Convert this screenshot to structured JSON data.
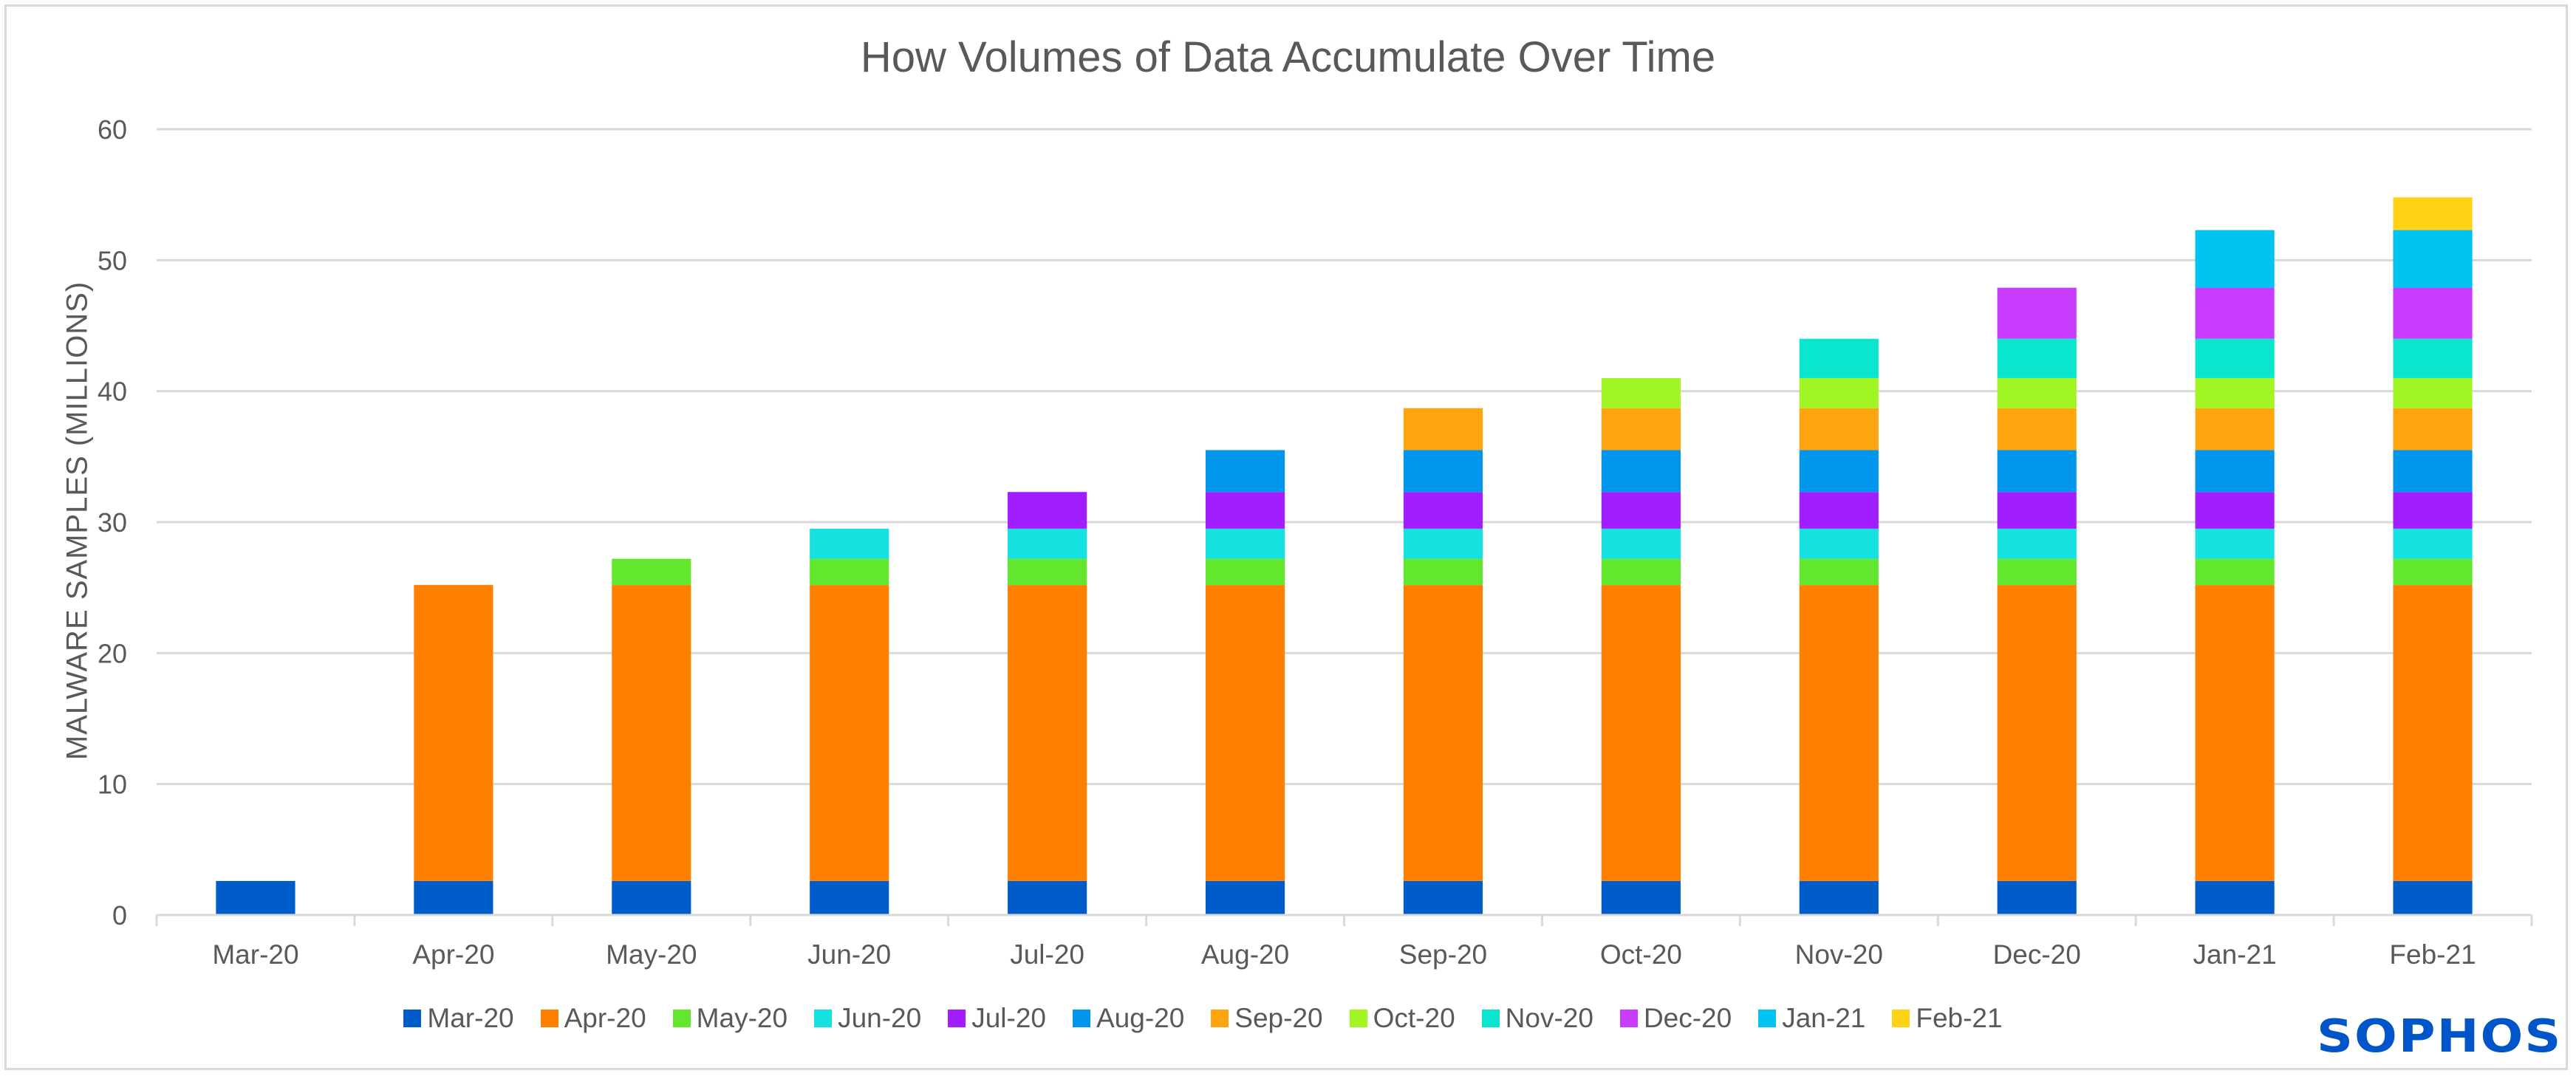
{
  "brand": {
    "logo_text": "SOPHOS",
    "logo_color": "#0055C8"
  },
  "chart_data": {
    "type": "bar",
    "stacked": true,
    "title": "How Volumes of Data Accumulate Over Time",
    "xlabel": "",
    "ylabel": "MALWARE SAMPLES (MILLIONS)",
    "ylim": [
      0,
      60
    ],
    "yticks": [
      0,
      10,
      20,
      30,
      40,
      50,
      60
    ],
    "grid": true,
    "legend_position": "bottom",
    "categories": [
      "Mar-20",
      "Apr-20",
      "May-20",
      "Jun-20",
      "Jul-20",
      "Aug-20",
      "Sep-20",
      "Oct-20",
      "Nov-20",
      "Dec-20",
      "Jan-21",
      "Feb-21"
    ],
    "series": [
      {
        "name": "Mar-20",
        "color": "#005CC8",
        "values": [
          2.6,
          2.6,
          2.6,
          2.6,
          2.6,
          2.6,
          2.6,
          2.6,
          2.6,
          2.6,
          2.6,
          2.6
        ]
      },
      {
        "name": "Apr-20",
        "color": "#FF8000",
        "values": [
          0,
          22.6,
          22.6,
          22.6,
          22.6,
          22.6,
          22.6,
          22.6,
          22.6,
          22.6,
          22.6,
          22.6
        ]
      },
      {
        "name": "May-20",
        "color": "#62E62E",
        "values": [
          0,
          0,
          2.0,
          2.0,
          2.0,
          2.0,
          2.0,
          2.0,
          2.0,
          2.0,
          2.0,
          2.0
        ]
      },
      {
        "name": "Jun-20",
        "color": "#16E0E0",
        "values": [
          0,
          0,
          0,
          2.3,
          2.3,
          2.3,
          2.3,
          2.3,
          2.3,
          2.3,
          2.3,
          2.3
        ]
      },
      {
        "name": "Jul-20",
        "color": "#A01EFF",
        "values": [
          0,
          0,
          0,
          0,
          2.8,
          2.8,
          2.8,
          2.8,
          2.8,
          2.8,
          2.8,
          2.8
        ]
      },
      {
        "name": "Aug-20",
        "color": "#0096EB",
        "values": [
          0,
          0,
          0,
          0,
          0,
          3.2,
          3.2,
          3.2,
          3.2,
          3.2,
          3.2,
          3.2
        ]
      },
      {
        "name": "Sep-20",
        "color": "#FFA50F",
        "values": [
          0,
          0,
          0,
          0,
          0,
          0,
          3.2,
          3.2,
          3.2,
          3.2,
          3.2,
          3.2
        ]
      },
      {
        "name": "Oct-20",
        "color": "#A0F523",
        "values": [
          0,
          0,
          0,
          0,
          0,
          0,
          0,
          2.3,
          2.3,
          2.3,
          2.3,
          2.3
        ]
      },
      {
        "name": "Nov-20",
        "color": "#0AE6CD",
        "values": [
          0,
          0,
          0,
          0,
          0,
          0,
          0,
          0,
          3.0,
          3.0,
          3.0,
          3.0
        ]
      },
      {
        "name": "Dec-20",
        "color": "#C83CFF",
        "values": [
          0,
          0,
          0,
          0,
          0,
          0,
          0,
          0,
          0,
          3.9,
          3.9,
          3.9
        ]
      },
      {
        "name": "Jan-21",
        "color": "#00C3F0",
        "values": [
          0,
          0,
          0,
          0,
          0,
          0,
          0,
          0,
          0,
          0,
          4.4,
          4.4
        ]
      },
      {
        "name": "Feb-21",
        "color": "#FFD214",
        "values": [
          0,
          0,
          0,
          0,
          0,
          0,
          0,
          0,
          0,
          0,
          0,
          2.5
        ]
      }
    ]
  }
}
